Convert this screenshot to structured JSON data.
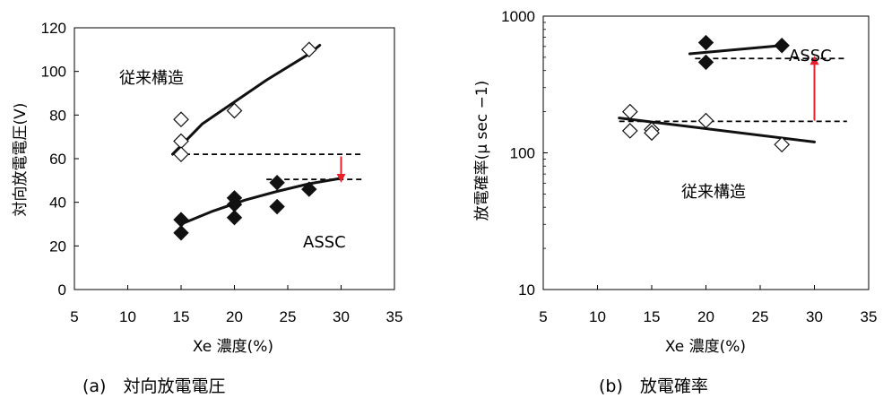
{
  "chart_data": [
    {
      "type": "scatter",
      "caption": "(a)　対向放電電圧",
      "xlabel": "Xe 濃度(%)",
      "ylabel": "対向放電電圧(V)",
      "xlim": [
        5,
        35
      ],
      "ylim": [
        0,
        120
      ],
      "xticks": [
        5,
        10,
        15,
        20,
        25,
        30,
        35
      ],
      "yticks": [
        0,
        20,
        40,
        60,
        80,
        100,
        120
      ],
      "grid": false,
      "series": [
        {
          "name": "従来構造",
          "marker": "open-diamond",
          "points": [
            [
              15,
              78
            ],
            [
              15,
              68
            ],
            [
              15,
              62
            ],
            [
              20,
              82
            ],
            [
              27,
              110
            ]
          ],
          "fit": [
            [
              14.2,
              62
            ],
            [
              15,
              66
            ],
            [
              17,
              76
            ],
            [
              20,
              86
            ],
            [
              23,
              96
            ],
            [
              27,
              108
            ],
            [
              28,
              112
            ]
          ]
        },
        {
          "name": "ASSC",
          "marker": "filled-diamond",
          "points": [
            [
              15,
              32
            ],
            [
              15,
              26
            ],
            [
              20,
              42
            ],
            [
              20,
              39
            ],
            [
              20,
              33
            ],
            [
              24,
              49
            ],
            [
              24,
              38
            ],
            [
              27,
              46
            ]
          ],
          "fit": [
            [
              15,
              30
            ],
            [
              18,
              36
            ],
            [
              21,
              41
            ],
            [
              24,
              45
            ],
            [
              27,
              48.5
            ],
            [
              30,
              51
            ]
          ]
        }
      ],
      "reference_lines": [
        {
          "y": 62,
          "x_range": [
            14.5,
            32
          ]
        },
        {
          "y": 50.5,
          "x_range": [
            23,
            32
          ]
        }
      ],
      "arrow": {
        "x": 30,
        "from": 61,
        "to": 51,
        "color": "#e8202a"
      }
    },
    {
      "type": "scatter",
      "caption": "(b)　放電確率",
      "xlabel": "Xe 濃度(%)",
      "ylabel": "放電確率(μ sec −1)",
      "xlim": [
        5,
        35
      ],
      "ylim": [
        10,
        1000
      ],
      "yscale": "log",
      "xticks": [
        5,
        10,
        15,
        20,
        25,
        30,
        35
      ],
      "yticks": [
        10,
        100,
        1000
      ],
      "grid": false,
      "series": [
        {
          "name": "ASSC",
          "marker": "filled-diamond",
          "points": [
            [
              20,
              640
            ],
            [
              20,
              460
            ],
            [
              27,
              610
            ]
          ],
          "fit": [
            [
              18.5,
              530
            ],
            [
              27,
              610
            ]
          ]
        },
        {
          "name": "従来構造",
          "marker": "open-diamond",
          "points": [
            [
              13,
              200
            ],
            [
              13,
              145
            ],
            [
              15,
              148
            ],
            [
              15,
              140
            ],
            [
              20,
              172
            ],
            [
              27,
              115
            ]
          ],
          "fit": [
            [
              12,
              180
            ],
            [
              30,
              120
            ]
          ]
        }
      ],
      "reference_lines": [
        {
          "y": 490,
          "x_range": [
            19,
            33
          ]
        },
        {
          "y": 170,
          "x_range": [
            12,
            33
          ]
        }
      ],
      "arrow": {
        "x": 30,
        "from": 172,
        "to": 475,
        "color": "#e8202a"
      }
    }
  ]
}
